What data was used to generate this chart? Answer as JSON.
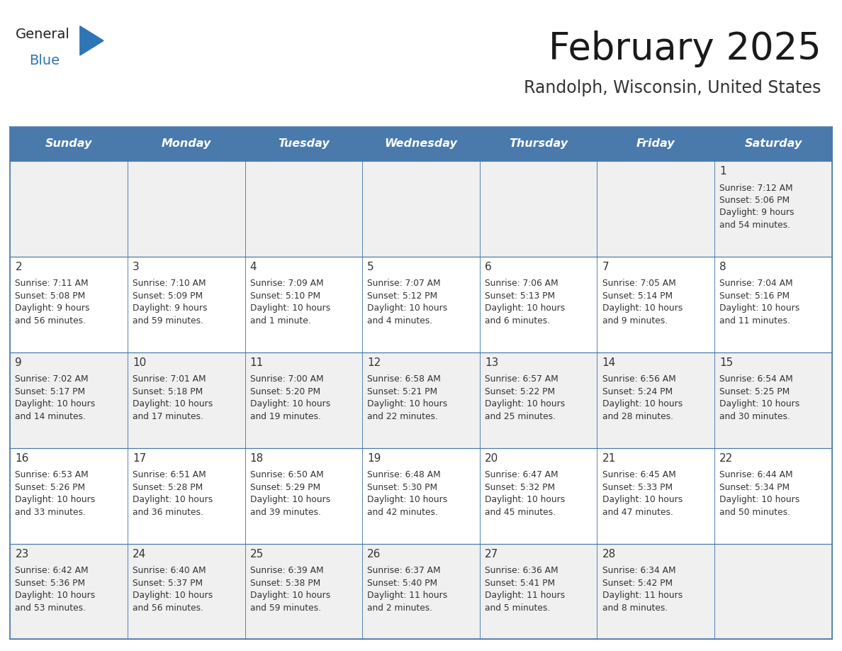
{
  "title": "February 2025",
  "subtitle": "Randolph, Wisconsin, United States",
  "header_bg": "#4a7aac",
  "header_text_color": "#FFFFFF",
  "day_names": [
    "Sunday",
    "Monday",
    "Tuesday",
    "Wednesday",
    "Thursday",
    "Friday",
    "Saturday"
  ],
  "row_bg_colors": [
    "#f0f0f0",
    "#ffffff",
    "#f0f0f0",
    "#ffffff",
    "#f0f0f0"
  ],
  "border_color": "#4a7aac",
  "day_num_color": "#333333",
  "info_color": "#333333",
  "logo_triangle_color": "#2E75B6",
  "calendar_data": [
    [
      null,
      null,
      null,
      null,
      null,
      null,
      {
        "day": 1,
        "rise": "7:12 AM",
        "set": "5:06 PM",
        "light_line1": "Daylight: 9 hours",
        "light_line2": "and 54 minutes."
      }
    ],
    [
      {
        "day": 2,
        "rise": "7:11 AM",
        "set": "5:08 PM",
        "light_line1": "Daylight: 9 hours",
        "light_line2": "and 56 minutes."
      },
      {
        "day": 3,
        "rise": "7:10 AM",
        "set": "5:09 PM",
        "light_line1": "Daylight: 9 hours",
        "light_line2": "and 59 minutes."
      },
      {
        "day": 4,
        "rise": "7:09 AM",
        "set": "5:10 PM",
        "light_line1": "Daylight: 10 hours",
        "light_line2": "and 1 minute."
      },
      {
        "day": 5,
        "rise": "7:07 AM",
        "set": "5:12 PM",
        "light_line1": "Daylight: 10 hours",
        "light_line2": "and 4 minutes."
      },
      {
        "day": 6,
        "rise": "7:06 AM",
        "set": "5:13 PM",
        "light_line1": "Daylight: 10 hours",
        "light_line2": "and 6 minutes."
      },
      {
        "day": 7,
        "rise": "7:05 AM",
        "set": "5:14 PM",
        "light_line1": "Daylight: 10 hours",
        "light_line2": "and 9 minutes."
      },
      {
        "day": 8,
        "rise": "7:04 AM",
        "set": "5:16 PM",
        "light_line1": "Daylight: 10 hours",
        "light_line2": "and 11 minutes."
      }
    ],
    [
      {
        "day": 9,
        "rise": "7:02 AM",
        "set": "5:17 PM",
        "light_line1": "Daylight: 10 hours",
        "light_line2": "and 14 minutes."
      },
      {
        "day": 10,
        "rise": "7:01 AM",
        "set": "5:18 PM",
        "light_line1": "Daylight: 10 hours",
        "light_line2": "and 17 minutes."
      },
      {
        "day": 11,
        "rise": "7:00 AM",
        "set": "5:20 PM",
        "light_line1": "Daylight: 10 hours",
        "light_line2": "and 19 minutes."
      },
      {
        "day": 12,
        "rise": "6:58 AM",
        "set": "5:21 PM",
        "light_line1": "Daylight: 10 hours",
        "light_line2": "and 22 minutes."
      },
      {
        "day": 13,
        "rise": "6:57 AM",
        "set": "5:22 PM",
        "light_line1": "Daylight: 10 hours",
        "light_line2": "and 25 minutes."
      },
      {
        "day": 14,
        "rise": "6:56 AM",
        "set": "5:24 PM",
        "light_line1": "Daylight: 10 hours",
        "light_line2": "and 28 minutes."
      },
      {
        "day": 15,
        "rise": "6:54 AM",
        "set": "5:25 PM",
        "light_line1": "Daylight: 10 hours",
        "light_line2": "and 30 minutes."
      }
    ],
    [
      {
        "day": 16,
        "rise": "6:53 AM",
        "set": "5:26 PM",
        "light_line1": "Daylight: 10 hours",
        "light_line2": "and 33 minutes."
      },
      {
        "day": 17,
        "rise": "6:51 AM",
        "set": "5:28 PM",
        "light_line1": "Daylight: 10 hours",
        "light_line2": "and 36 minutes."
      },
      {
        "day": 18,
        "rise": "6:50 AM",
        "set": "5:29 PM",
        "light_line1": "Daylight: 10 hours",
        "light_line2": "and 39 minutes."
      },
      {
        "day": 19,
        "rise": "6:48 AM",
        "set": "5:30 PM",
        "light_line1": "Daylight: 10 hours",
        "light_line2": "and 42 minutes."
      },
      {
        "day": 20,
        "rise": "6:47 AM",
        "set": "5:32 PM",
        "light_line1": "Daylight: 10 hours",
        "light_line2": "and 45 minutes."
      },
      {
        "day": 21,
        "rise": "6:45 AM",
        "set": "5:33 PM",
        "light_line1": "Daylight: 10 hours",
        "light_line2": "and 47 minutes."
      },
      {
        "day": 22,
        "rise": "6:44 AM",
        "set": "5:34 PM",
        "light_line1": "Daylight: 10 hours",
        "light_line2": "and 50 minutes."
      }
    ],
    [
      {
        "day": 23,
        "rise": "6:42 AM",
        "set": "5:36 PM",
        "light_line1": "Daylight: 10 hours",
        "light_line2": "and 53 minutes."
      },
      {
        "day": 24,
        "rise": "6:40 AM",
        "set": "5:37 PM",
        "light_line1": "Daylight: 10 hours",
        "light_line2": "and 56 minutes."
      },
      {
        "day": 25,
        "rise": "6:39 AM",
        "set": "5:38 PM",
        "light_line1": "Daylight: 10 hours",
        "light_line2": "and 59 minutes."
      },
      {
        "day": 26,
        "rise": "6:37 AM",
        "set": "5:40 PM",
        "light_line1": "Daylight: 11 hours",
        "light_line2": "and 2 minutes."
      },
      {
        "day": 27,
        "rise": "6:36 AM",
        "set": "5:41 PM",
        "light_line1": "Daylight: 11 hours",
        "light_line2": "and 5 minutes."
      },
      {
        "day": 28,
        "rise": "6:34 AM",
        "set": "5:42 PM",
        "light_line1": "Daylight: 11 hours",
        "light_line2": "and 8 minutes."
      },
      null
    ]
  ]
}
